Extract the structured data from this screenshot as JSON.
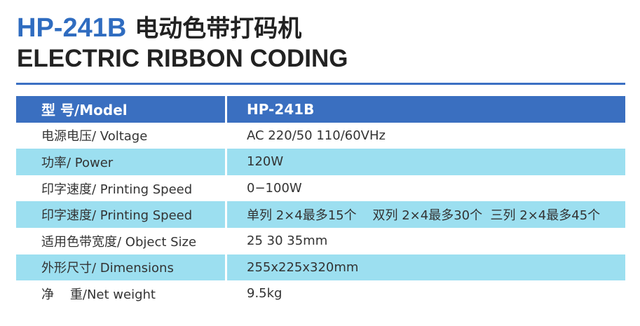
{
  "title": {
    "model": "HP-241B",
    "name_cn": "电动色带打码机",
    "name_en": "ELECTRIC RIBBON CODING"
  },
  "colors": {
    "accent": "#3a6fc0",
    "row_alt": "#9cdff0"
  },
  "table": {
    "header": {
      "label": "型 号/Model",
      "value": "HP-241B"
    },
    "rows": [
      {
        "label": "电源电压/  Voltage",
        "value": "AC 220/50 110/60VHz"
      },
      {
        "label": "功率/  Power",
        "value": "120W"
      },
      {
        "label": "印字速度/  Printing Speed",
        "value": "0−100W"
      },
      {
        "label": "印字速度/  Printing Speed",
        "value": "单列 2×4最多15个    双列 2×4最多30个  三列 2×4最多45个"
      },
      {
        "label": "适用色带宽度/  Object Size",
        "value": "25 30 35mm"
      },
      {
        "label": "外形尺寸/ Dimensions",
        "value": "255x225x320mm"
      },
      {
        "label": "净    重/Net weight",
        "value": "9.5kg"
      }
    ]
  }
}
